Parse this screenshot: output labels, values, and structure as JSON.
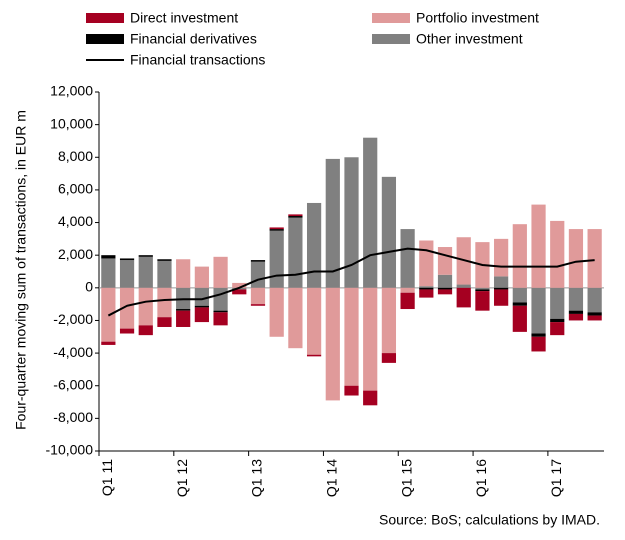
{
  "chart_data": {
    "type": "bar",
    "y_label": "Four-quarter moving sum of transactions, in EUR m",
    "source": "Source: BoS; calculations by IMAD.",
    "categories": [
      "Q1 11",
      null,
      null,
      null,
      "Q1 12",
      null,
      null,
      null,
      "Q1 13",
      null,
      null,
      null,
      "Q1 14",
      null,
      null,
      null,
      "Q1 15",
      null,
      null,
      null,
      "Q1 16",
      null,
      null,
      null,
      "Q1 17",
      null,
      null
    ],
    "series": [
      {
        "name": "Direct investment",
        "color": "#a50021",
        "values": [
          -200,
          -300,
          -600,
          -600,
          -1000,
          -900,
          -800,
          -300,
          -100,
          100,
          100,
          -100,
          0,
          -600,
          -900,
          -600,
          -1000,
          -500,
          -300,
          -1200,
          -1200,
          -1000,
          -1600,
          -900,
          -800,
          -400,
          -300
        ]
      },
      {
        "name": "Portfolio investment",
        "color": "#e09a9a",
        "values": [
          -3300,
          -2500,
          -2300,
          -1800,
          1750,
          1300,
          1900,
          300,
          -1000,
          -3000,
          -3700,
          -4100,
          -6900,
          -6000,
          -6300,
          -4000,
          -300,
          2800,
          1700,
          2900,
          2800,
          2300,
          3900,
          5100,
          4100,
          3600,
          3600
        ]
      },
      {
        "name": "Financial derivatives",
        "color": "#000000",
        "values": [
          200,
          100,
          100,
          100,
          -100,
          -100,
          -100,
          0,
          100,
          100,
          100,
          0,
          0,
          0,
          0,
          0,
          0,
          -100,
          -100,
          0,
          -100,
          -100,
          -200,
          -200,
          -200,
          -200,
          -200
        ]
      },
      {
        "name": "Other investment",
        "color": "#808080",
        "values": [
          1800,
          1700,
          1900,
          1650,
          -1300,
          -1100,
          -1400,
          -100,
          1600,
          3500,
          4300,
          5200,
          7900,
          8000,
          9200,
          6800,
          3600,
          100,
          800,
          200,
          -100,
          700,
          -900,
          -2800,
          -1900,
          -1400,
          -1500
        ]
      },
      {
        "name": "Financial transactions",
        "color": "#000000",
        "type": "line",
        "values": [
          -1700,
          -1100,
          -850,
          -750,
          -700,
          -700,
          -400,
          0,
          500,
          750,
          800,
          1000,
          1000,
          1400,
          2000,
          2200,
          2400,
          2300,
          2000,
          1700,
          1400,
          1300,
          1300,
          1300,
          1300,
          1600,
          1700
        ]
      }
    ],
    "ylim": [
      -10000,
      12000
    ],
    "yticks": [
      {
        "value": -10000,
        "label": "-10,000"
      },
      {
        "value": -8000,
        "label": "-8,000"
      },
      {
        "value": -6000,
        "label": "-6,000"
      },
      {
        "value": -4000,
        "label": "-4,000"
      },
      {
        "value": -2000,
        "label": "-2,000"
      },
      0,
      {
        "value": 2000,
        "label": "2,000"
      },
      {
        "value": 4000,
        "label": "4,000"
      },
      {
        "value": 6000,
        "label": "6,000"
      },
      {
        "value": 8000,
        "label": "8,000"
      },
      {
        "value": 10000,
        "label": "10,000"
      },
      {
        "value": 12000,
        "label": "12,000"
      }
    ]
  }
}
